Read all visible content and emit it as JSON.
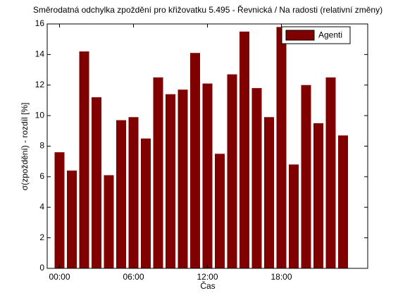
{
  "chart_data": {
    "type": "bar",
    "title": "Směrodatná odchylka zpoždění pro křižovatku 5.495 - Řevnická / Na radosti (relativní změny)",
    "x_label": "Čas",
    "y_label": "σ(zpoždění)  - rozdíl [%]",
    "x": [
      0,
      1,
      2,
      3,
      4,
      5,
      6,
      7,
      8,
      9,
      10,
      11,
      12,
      13,
      14,
      15,
      16,
      17,
      18,
      19,
      20,
      21,
      22,
      23
    ],
    "series": [
      {
        "name": "Agenti",
        "color": "#800000",
        "values": [
          7.6,
          6.4,
          14.2,
          11.2,
          6.1,
          9.7,
          9.9,
          8.5,
          12.5,
          11.4,
          11.7,
          14.1,
          12.1,
          7.5,
          12.7,
          15.5,
          11.8,
          9.9,
          15.8,
          6.8,
          12.0,
          9.5,
          12.5,
          8.7
        ]
      }
    ],
    "xlim": [
      -1,
      25
    ],
    "xticks": [
      {
        "value": 0,
        "label": "00:00"
      },
      {
        "value": 6,
        "label": "06:00"
      },
      {
        "value": 12,
        "label": "12:00"
      },
      {
        "value": 18,
        "label": "18:00"
      }
    ],
    "ylim": [
      0,
      16
    ],
    "yticks": [
      0,
      2,
      4,
      6,
      8,
      10,
      12,
      14,
      16
    ],
    "legend": "upper right",
    "grid": false
  }
}
